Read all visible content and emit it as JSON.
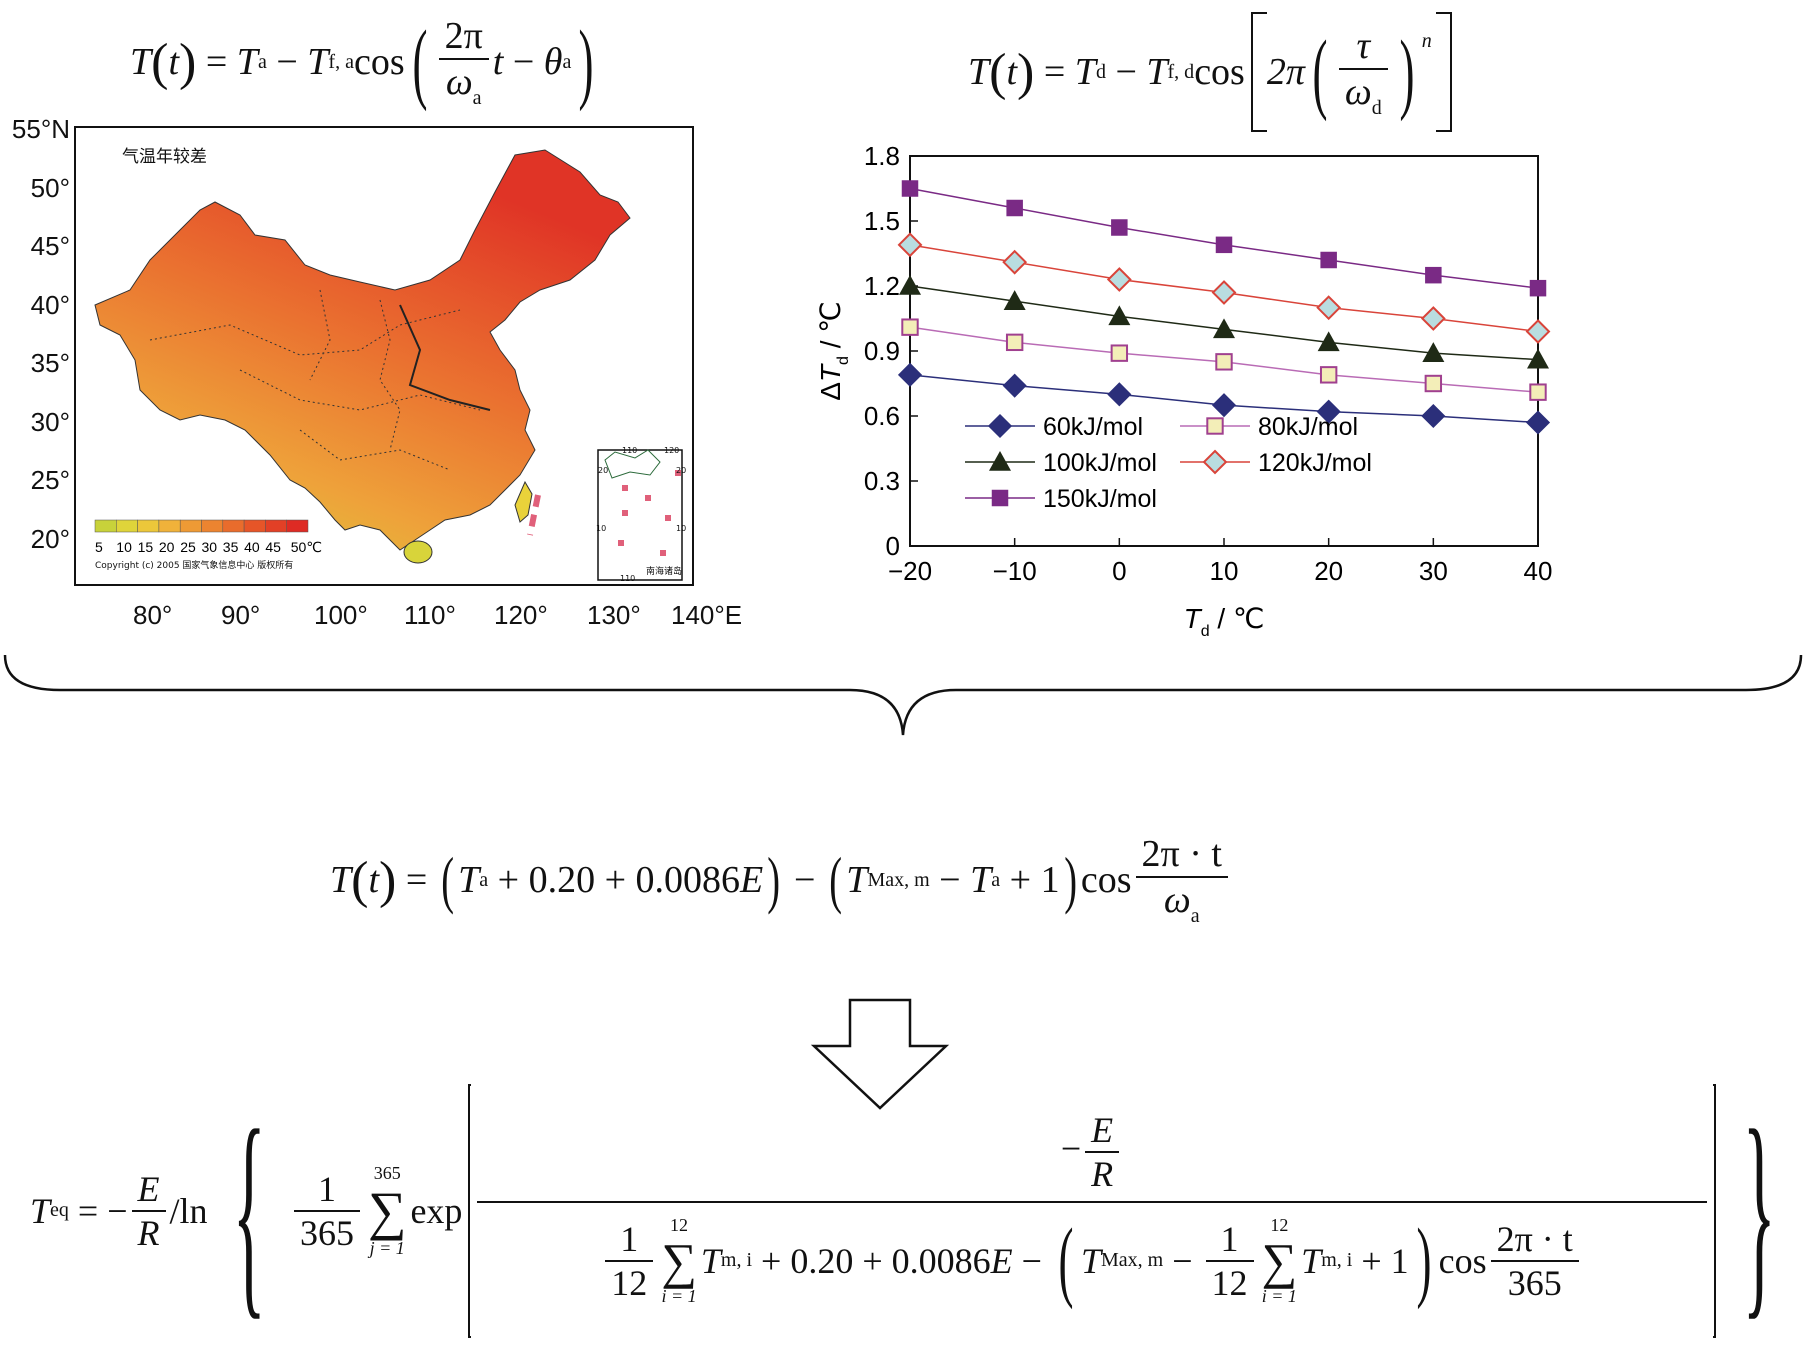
{
  "equations": {
    "eq1": {
      "lhs": "T",
      "t": "t",
      "Ta": "T",
      "Ta_sub": "a",
      "Tfa": "T",
      "Tfa_sub": "f, a",
      "cos": "cos",
      "num": "2π",
      "den_sym": "ω",
      "den_sub": "a",
      "theta": "θ",
      "theta_sub": "a"
    },
    "eq2": {
      "lhs": "T",
      "t": "t",
      "Td": "T",
      "Td_sub": "d",
      "Tfd": "T",
      "Tfd_sub": "f, d",
      "cos": "cos",
      "twopi": "2π",
      "tau": "τ",
      "omega": "ω",
      "omega_sub": "d",
      "n": "n"
    },
    "eq3": {
      "lhs": "T",
      "t": "t",
      "Ta_sub": "a",
      "const1": "0.20",
      "const2": "0.0086",
      "E": "E",
      "TMax_sub": "Max, m",
      "one": "1",
      "cos": "cos",
      "num": "2π · t",
      "den_sym": "ω",
      "den_sub": "a"
    },
    "eq4": {
      "Teq_sub": "eq",
      "E": "E",
      "R": "R",
      "ln": "/ln",
      "one": "1",
      "n365": "365",
      "sum_top": "365",
      "sum_bot": "j = 1",
      "exp": "exp",
      "sum12_top": "12",
      "sum12_bot": "i = 1",
      "n12": "12",
      "Tmi_sub": "m, i",
      "const1": "0.20",
      "const2": "0.0086",
      "TMax_sub": "Max, m",
      "plus_one": "1",
      "cos": "cos",
      "cosnum": "2π · t",
      "cosden": "365"
    }
  },
  "map": {
    "title": "气温年较差",
    "lat_labels": [
      "55°N",
      "50°",
      "45°",
      "40°",
      "35°",
      "30°",
      "25°",
      "20°"
    ],
    "lon_labels": [
      "80°",
      "90°",
      "100°",
      "110°",
      "120°",
      "130°",
      "140°E"
    ],
    "colorbar_ticks": [
      "5",
      "10",
      "15",
      "20",
      "25",
      "30",
      "35",
      "40",
      "45",
      "50℃"
    ],
    "colorbar_colors": [
      "#c8d23a",
      "#dfd43a",
      "#ecc73a",
      "#f0b23a",
      "#ee9a35",
      "#ec8430",
      "#e96c2c",
      "#e65528",
      "#e24026",
      "#de2b24"
    ],
    "copyright": "Copyright (c) 2005 国家气象信息中心 版权所有",
    "inset_labels": {
      "top_left": "110",
      "top_right": "120",
      "left_20": "20",
      "right_20": "20",
      "left_10": "10",
      "right_10": "10",
      "bottom": "110",
      "sea": "南海诸岛"
    }
  },
  "chart_data": {
    "type": "line",
    "x": [
      -20,
      -10,
      0,
      10,
      20,
      30,
      40
    ],
    "xlabel_sym": "T",
    "xlabel_sub": "d",
    "xlabel_unit": " / ℃",
    "ylabel_sym": "ΔT",
    "ylabel_sub": "d",
    "ylabel_unit": " / ℃",
    "xticks": [
      "−20",
      "−10",
      "0",
      "10",
      "20",
      "30",
      "40"
    ],
    "yticks": [
      "0",
      "0.3",
      "0.6",
      "0.9",
      "1.2",
      "1.5",
      "1.8"
    ],
    "xlim": [
      -20,
      40
    ],
    "ylim": [
      0,
      1.8
    ],
    "legend_placement": "bottom-left",
    "series": [
      {
        "name": "60kJ/mol",
        "color": "#2b2f7a",
        "marker": "diamond",
        "values": [
          0.79,
          0.74,
          0.7,
          0.65,
          0.62,
          0.6,
          0.57
        ]
      },
      {
        "name": "80kJ/mol",
        "color": "#b96bb5",
        "marker": "square-open",
        "fill": "#f3eeb8",
        "stroke": "#a0408f",
        "values": [
          1.01,
          0.94,
          0.89,
          0.85,
          0.79,
          0.75,
          0.71
        ]
      },
      {
        "name": "100kJ/mol",
        "color": "#1f2a16",
        "marker": "triangle",
        "values": [
          1.2,
          1.13,
          1.06,
          1.0,
          0.94,
          0.89,
          0.86
        ]
      },
      {
        "name": "120kJ/mol",
        "color": "#d9443a",
        "marker": "diamond-open",
        "fill": "#b9dde0",
        "stroke": "#d9443a",
        "values": [
          1.39,
          1.31,
          1.23,
          1.17,
          1.1,
          1.05,
          0.99
        ]
      },
      {
        "name": "150kJ/mol",
        "color": "#7a2a85",
        "marker": "square",
        "values": [
          1.65,
          1.56,
          1.47,
          1.39,
          1.32,
          1.25,
          1.19
        ]
      }
    ]
  }
}
